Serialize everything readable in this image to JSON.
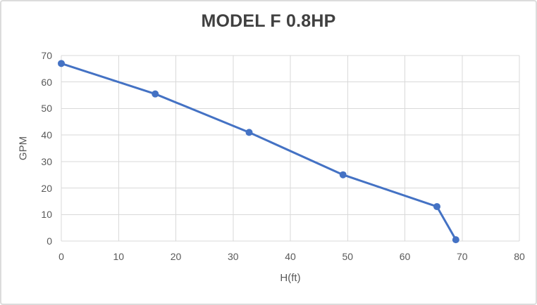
{
  "window": {
    "background_color": "#ffffff",
    "border_color": "#dcdcdc"
  },
  "chart_data": {
    "type": "line",
    "title": "MODEL F 0.8HP",
    "xlabel": "H(ft)",
    "ylabel": "GPM",
    "x": [
      0,
      16.4,
      32.8,
      49.2,
      65.6,
      68.9
    ],
    "y": [
      67,
      55.5,
      41,
      25,
      13,
      0.5
    ],
    "xlim": [
      0,
      80
    ],
    "ylim": [
      0,
      70
    ],
    "xticks": [
      0,
      10,
      20,
      30,
      40,
      50,
      60,
      70,
      80
    ],
    "yticks": [
      0,
      10,
      20,
      30,
      40,
      50,
      60,
      70
    ],
    "grid": true,
    "legend": "none",
    "marker": "circle",
    "colors": {
      "line": "#4472C4",
      "marker": "#4472C4",
      "gridline": "#D9D9D9",
      "tick_label": "#595959",
      "axis_title": "#595959",
      "title": "#404040"
    }
  }
}
